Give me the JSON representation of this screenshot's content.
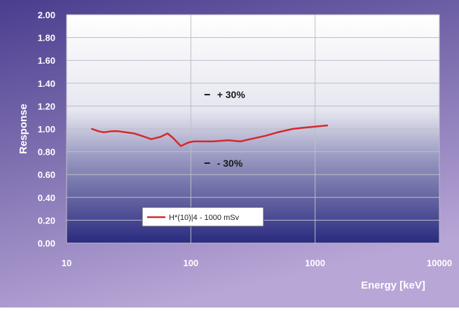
{
  "chart_data": {
    "type": "line",
    "title": "",
    "xlabel": "Energy [keV]",
    "ylabel": "Response",
    "xscale": "log",
    "xlim": [
      10,
      10000
    ],
    "ylim": [
      0.0,
      2.0
    ],
    "xticks": [
      10,
      100,
      1000,
      10000
    ],
    "xtick_labels": [
      "10",
      "100",
      "1000",
      "10000"
    ],
    "yticks": [
      0.0,
      0.2,
      0.4,
      0.6,
      0.8,
      1.0,
      1.2,
      1.4,
      1.6,
      1.8,
      2.0
    ],
    "ytick_labels": [
      "0.00",
      "0.20",
      "0.40",
      "0.60",
      "0.80",
      "1.00",
      "1.20",
      "1.40",
      "1.60",
      "1.80",
      "2.00"
    ],
    "grid": true,
    "legend_position": "bottom-left",
    "series": [
      {
        "name": "H*(10)|4 - 1000 mSv",
        "color": "#d42a2a",
        "x": [
          16,
          18,
          20,
          23,
          26,
          30,
          35,
          40,
          48,
          57,
          65,
          72,
          83,
          95,
          105,
          120,
          150,
          200,
          250,
          300,
          400,
          500,
          662,
          800,
          1000,
          1250
        ],
        "y": [
          1.0,
          0.98,
          0.97,
          0.98,
          0.98,
          0.97,
          0.96,
          0.94,
          0.91,
          0.93,
          0.96,
          0.92,
          0.85,
          0.88,
          0.89,
          0.89,
          0.89,
          0.9,
          0.89,
          0.91,
          0.94,
          0.97,
          1.0,
          1.01,
          1.02,
          1.03
        ]
      }
    ],
    "annotations": [
      {
        "text": "+ 30%",
        "x": 200,
        "y": 1.3
      },
      {
        "text": "- 30%",
        "x": 200,
        "y": 0.7
      }
    ]
  },
  "style": {
    "frame_color_light": "#b8a6d6",
    "frame_color_dark": "#4a3d8e",
    "plot_top_color": "#ffffff",
    "plot_bottom_color": "#2a2a80",
    "grid_color": "#bdbdc8",
    "axis_text_color": "#ffffff",
    "annotation_color": "#1a1a1a"
  }
}
